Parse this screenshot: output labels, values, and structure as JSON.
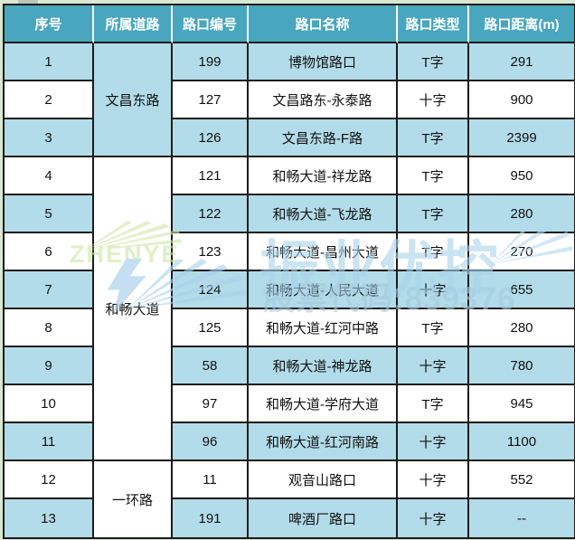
{
  "page": {
    "background": "#d9e8d2"
  },
  "table": {
    "headers": [
      "序号",
      "所属道路",
      "路口编号",
      "路口名称",
      "路口类型",
      "路口距离(m)"
    ],
    "header_bg": "#48a6bf",
    "row_blue": "#b2dce9",
    "rows": [
      {
        "seq": "1",
        "road": "文昌东路",
        "road_span": 3,
        "road_bg": "blue",
        "id": "199",
        "name": "博物馆路口",
        "type": "T字",
        "dist": "291",
        "shade": "blue"
      },
      {
        "seq": "2",
        "id": "127",
        "name": "文昌路东-永泰路",
        "type": "十字",
        "dist": "900",
        "shade": "white"
      },
      {
        "seq": "3",
        "id": "126",
        "name": "文昌东路-F路",
        "type": "T字",
        "dist": "2399",
        "shade": "blue"
      },
      {
        "seq": "4",
        "road": "和畅大道",
        "road_span": 8,
        "road_bg": "white",
        "id": "121",
        "name": "和畅大道-祥龙路",
        "type": "T字",
        "dist": "950",
        "shade": "white"
      },
      {
        "seq": "5",
        "id": "122",
        "name": "和畅大道-飞龙路",
        "type": "T字",
        "dist": "280",
        "shade": "blue"
      },
      {
        "seq": "6",
        "id": "123",
        "name": "和畅大道-昌州大道",
        "type": "T字",
        "dist": "270",
        "shade": "white"
      },
      {
        "seq": "7",
        "id": "124",
        "name": "和畅大道-人民大道",
        "type": "十字",
        "dist": "655",
        "shade": "blue"
      },
      {
        "seq": "8",
        "id": "125",
        "name": "和畅大道-红河中路",
        "type": "T字",
        "dist": "280",
        "shade": "white"
      },
      {
        "seq": "9",
        "id": "58",
        "name": "和畅大道-神龙路",
        "type": "十字",
        "dist": "780",
        "shade": "blue"
      },
      {
        "seq": "10",
        "id": "97",
        "name": "和畅大道-学府大道",
        "type": "T字",
        "dist": "945",
        "shade": "white"
      },
      {
        "seq": "11",
        "id": "96",
        "name": "和畅大道-红河南路",
        "type": "十字",
        "dist": "1100",
        "shade": "blue"
      },
      {
        "seq": "12",
        "road": "一环路",
        "road_span": 2,
        "road_bg": "white",
        "id": "11",
        "name": "观音山路口",
        "type": "十字",
        "dist": "552",
        "shade": "white"
      },
      {
        "seq": "13",
        "id": "191",
        "name": "啤酒厂路口",
        "type": "十字",
        "dist": "--",
        "shade": "blue"
      }
    ]
  },
  "watermark": {
    "brand": "ZHENYE",
    "brand_color": "#c9e79f",
    "slogan": "振业优控",
    "stock": "股票代码:839376",
    "logo_blue": "#9fc9e8"
  }
}
